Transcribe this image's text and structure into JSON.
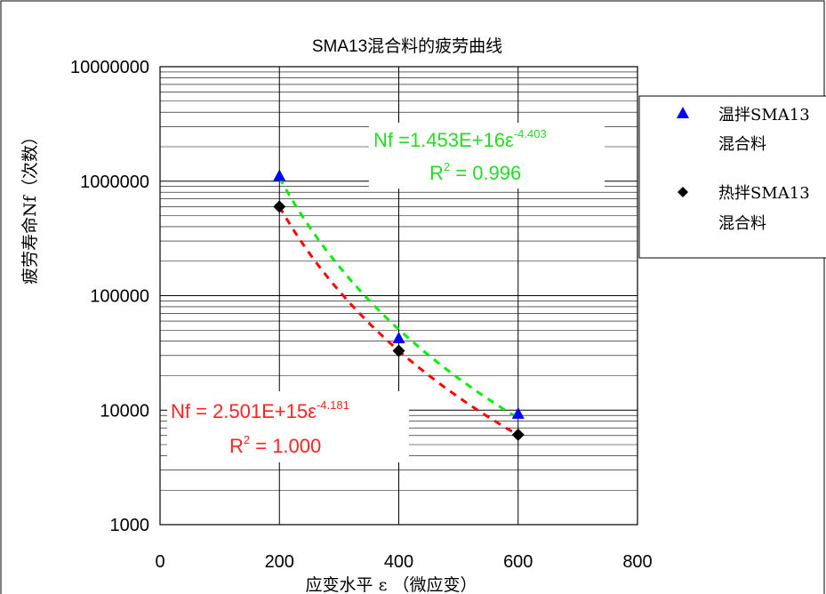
{
  "chart_data": {
    "type": "scatter",
    "title": "SMA13混合料的疲劳曲线",
    "xlabel": "应变水平 ε （微应变）",
    "ylabel": "疲劳寿命Nf（次数）",
    "xlim": [
      0,
      800
    ],
    "ylim": [
      1000,
      10000000
    ],
    "yscale": "log",
    "x_ticks": [
      "0",
      "200",
      "400",
      "600",
      "800"
    ],
    "y_ticks": [
      "1000",
      "10000",
      "100000",
      "1000000",
      "10000000"
    ],
    "grid": true,
    "legend_position": "right",
    "series": [
      {
        "name": "温拌SMA13 混合料",
        "legend_lines": [
          "温拌SMA13",
          "混合料"
        ],
        "marker": "triangle",
        "marker_color": "#0000ff",
        "trend_color": "#00ee00",
        "x": [
          200,
          400,
          600
        ],
        "y": [
          1100000,
          42000,
          9200
        ],
        "trend": {
          "type": "power",
          "a": 1.453e+16,
          "b": -4.403,
          "equation_prefix": "Nf =1.453E+16ε",
          "exponent": "-4.403",
          "r2_prefix": "R",
          "r2_suffix": " = 0.996"
        }
      },
      {
        "name": "热拌SMA13 混合料",
        "legend_lines": [
          "热拌SMA13",
          "混合料"
        ],
        "marker": "diamond",
        "marker_color": "#000000",
        "trend_color": "#ff0000",
        "x": [
          200,
          400,
          600
        ],
        "y": [
          600000,
          33000,
          6100
        ],
        "trend": {
          "type": "power",
          "a": 2501000000000000.0,
          "b": -4.181,
          "equation_prefix": "Nf = 2.501E+15ε",
          "exponent": "-4.181",
          "r2_prefix": "R",
          "r2_suffix": " = 1.000"
        }
      }
    ]
  }
}
